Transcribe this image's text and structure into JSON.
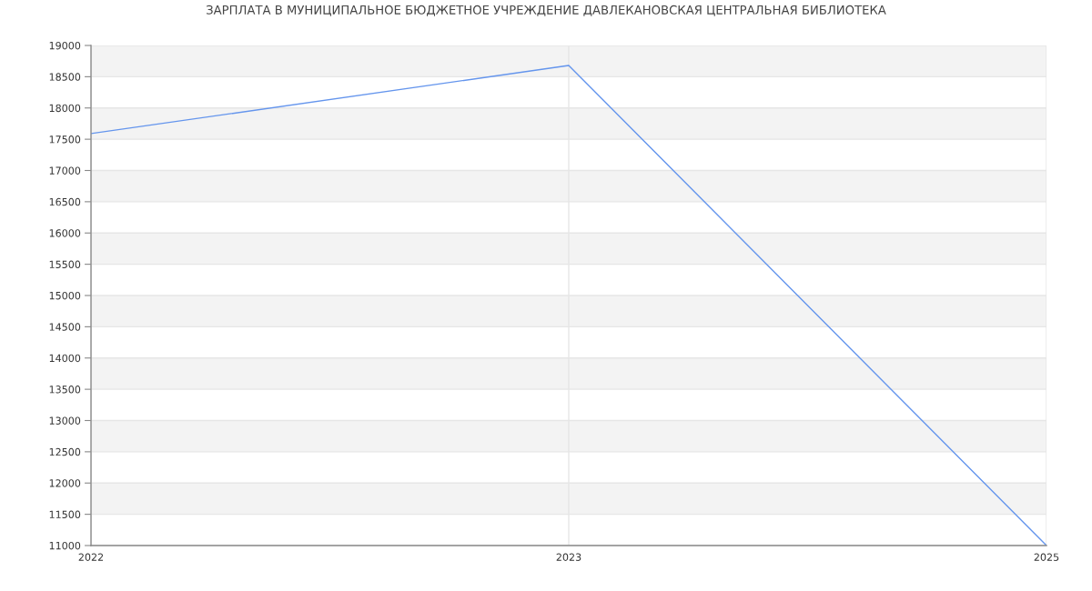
{
  "chart_data": {
    "type": "line",
    "title": "ЗАРПЛАТА В МУНИЦИПАЛЬНОЕ БЮДЖЕТНОЕ УЧРЕЖДЕНИЕ ДАВЛЕКАНОВСКАЯ ЦЕНТРАЛЬНАЯ БИБЛИОТЕКА",
    "categories": [
      "2022",
      "2023",
      "2025"
    ],
    "series": [
      {
        "color": "#6495ed",
        "values": [
          17590,
          18680,
          11000
        ]
      }
    ],
    "ylim": [
      11000,
      19000
    ],
    "yticks": [
      11000,
      11500,
      12000,
      12500,
      13000,
      13500,
      14000,
      14500,
      15000,
      15500,
      16000,
      16500,
      17000,
      17500,
      18000,
      18500,
      19000
    ],
    "bands": [
      {
        "axis": "y",
        "from": 11500,
        "to": 12000,
        "color": "#f3f3f3"
      },
      {
        "axis": "y",
        "from": 12500,
        "to": 13000,
        "color": "#f3f3f3"
      },
      {
        "axis": "y",
        "from": 13500,
        "to": 14000,
        "color": "#f3f3f3"
      },
      {
        "axis": "y",
        "from": 14500,
        "to": 15000,
        "color": "#f3f3f3"
      },
      {
        "axis": "y",
        "from": 15500,
        "to": 16000,
        "color": "#f3f3f3"
      },
      {
        "axis": "y",
        "from": 16500,
        "to": 17000,
        "color": "#f3f3f3"
      },
      {
        "axis": "y",
        "from": 17500,
        "to": 18000,
        "color": "#f3f3f3"
      },
      {
        "axis": "y",
        "from": 18500,
        "to": 19000,
        "color": "#f3f3f3"
      }
    ],
    "grid": true,
    "marker": "none",
    "line_style": "solid"
  }
}
